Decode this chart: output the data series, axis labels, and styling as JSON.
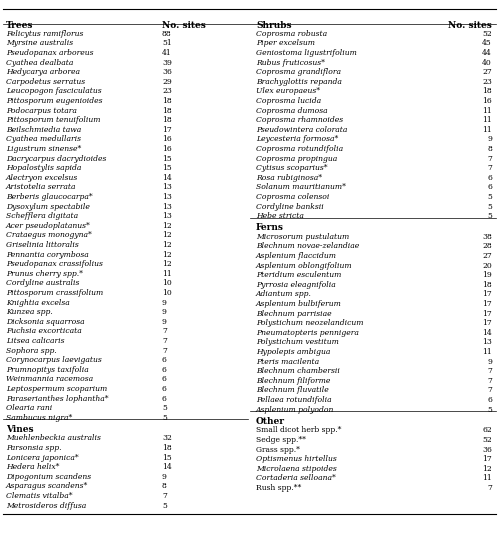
{
  "trees": [
    [
      "Felicytus ramiflorus",
      88
    ],
    [
      "Myrsine australis",
      51
    ],
    [
      "Pseudopanax arboreus",
      41
    ],
    [
      "Cyathea dealbata",
      39
    ],
    [
      "Hedycarya arborea",
      36
    ],
    [
      "Carpodetus serratus",
      29
    ],
    [
      "Leucopogon fasciculatus",
      23
    ],
    [
      "Pittosporum eugenioides",
      18
    ],
    [
      "Podocarpus totara",
      18
    ],
    [
      "Pittosporum tenuifolium",
      18
    ],
    [
      "Beilschmiedia tawa",
      17
    ],
    [
      "Cyathea medullaris",
      16
    ],
    [
      "Ligustrum sinense*",
      16
    ],
    [
      "Dacrycarpus dacrydioides",
      15
    ],
    [
      "Hopalostylis sapida",
      15
    ],
    [
      "Alectryon excelsus",
      14
    ],
    [
      "Aristotelia serrata",
      13
    ],
    [
      "Berberis glaucocarpa*",
      13
    ],
    [
      "Dysoxylum spectabile",
      13
    ],
    [
      "Schefflera digitata",
      13
    ],
    [
      "Acer pseudoplatanus*",
      12
    ],
    [
      "Crataegus monogyna*",
      12
    ],
    [
      "Griselinia littoralis",
      12
    ],
    [
      "Pennantia corymbosa",
      12
    ],
    [
      "Pseudopanax crassifolius",
      12
    ],
    [
      "Prunus cherry spp.*",
      11
    ],
    [
      "Cordyline australis",
      10
    ],
    [
      "Pittosporum crassifolium",
      10
    ],
    [
      "Knightia excelsa",
      9
    ],
    [
      "Kunzea spp.",
      9
    ],
    [
      "Dicksonia squarrosa",
      9
    ],
    [
      "Fuchsia excorticata",
      7
    ],
    [
      "Litsea calicaris",
      7
    ],
    [
      "Sophora spp.",
      7
    ],
    [
      "Corynocarpus laevigatus",
      6
    ],
    [
      "Prumnopitys taxifolia",
      6
    ],
    [
      "Weinmannia racemosa",
      6
    ],
    [
      "Leptospermum scoparium",
      6
    ],
    [
      "Paraserianthes lophantha*",
      6
    ],
    [
      "Olearia rani",
      5
    ],
    [
      "Sambucus nigra*",
      5
    ]
  ],
  "vines": [
    [
      "Muehlenbeckia australis",
      32
    ],
    [
      "Parsonsia spp.",
      18
    ],
    [
      "Lonicera japonica*",
      15
    ],
    [
      "Hedera helix*",
      14
    ],
    [
      "Dipogonium scandens",
      9
    ],
    [
      "Asparagus scandens*",
      8
    ],
    [
      "Clematis vitalba*",
      7
    ],
    [
      "Metrosideros diffusa",
      5
    ]
  ],
  "shrubs": [
    [
      "Coprosma robusta",
      52
    ],
    [
      "Piper excelsum",
      45
    ],
    [
      "Geniostoma ligustrifolium",
      44
    ],
    [
      "Rubus fruticosus*",
      40
    ],
    [
      "Coprosma grandiflora",
      27
    ],
    [
      "Brachyglottis repanda",
      23
    ],
    [
      "Ulex europaeus*",
      18
    ],
    [
      "Coprosma lucida",
      16
    ],
    [
      "Coprosma dumosa",
      11
    ],
    [
      "Coprosma rhamnoides",
      11
    ],
    [
      "Pseudowintera colorata",
      11
    ],
    [
      "Leycesteria formosa*",
      9
    ],
    [
      "Coprosma rotundifolia",
      8
    ],
    [
      "Coprosma propingua",
      7
    ],
    [
      "Cytisus scoparius*",
      7
    ],
    [
      "Rosa rubiginosa*",
      6
    ],
    [
      "Solanum mauritianum*",
      6
    ],
    [
      "Coprosma colensoi",
      5
    ],
    [
      "Cordyline banksii",
      5
    ],
    [
      "Hebe stricta",
      5
    ]
  ],
  "ferns": [
    [
      "Microsorum pustulatum",
      38
    ],
    [
      "Blechnum novae-zelandiae",
      28
    ],
    [
      "Asplenium flaccidum",
      27
    ],
    [
      "Asplenium oblongifolium",
      20
    ],
    [
      "Pteridium esculentum",
      19
    ],
    [
      "Pyrrosia eleagnifolia",
      18
    ],
    [
      "Adiantum spp.",
      17
    ],
    [
      "Asplenium bulbiferum",
      17
    ],
    [
      "Blechnum parrisiae",
      17
    ],
    [
      "Polystichum neozelandicum",
      17
    ],
    [
      "Pneumatopteris pennigera",
      14
    ],
    [
      "Polystichum vestitum",
      13
    ],
    [
      "Hypolepis ambigua",
      11
    ],
    [
      "Pteris macilenta",
      9
    ],
    [
      "Blechnum chambersii",
      7
    ],
    [
      "Blechnum filiforme",
      7
    ],
    [
      "Blechnum fluvatile",
      7
    ],
    [
      "Pellaea rotundifolia",
      6
    ],
    [
      "Asplenium polyodon",
      5
    ]
  ],
  "other": [
    [
      "Small dicot herb spp.*",
      62,
      false
    ],
    [
      "Sedge spp.**",
      52,
      false
    ],
    [
      "Grass spp.*",
      36,
      false
    ],
    [
      "Optismenus hirtellus",
      17,
      true
    ],
    [
      "Microlaena stipoides",
      12,
      true
    ],
    [
      "Cortaderia selloana*",
      11,
      true
    ],
    [
      "Rush spp.**",
      7,
      false
    ]
  ],
  "bg_color": "#ffffff",
  "text_color": "#000000",
  "line_color": "#000000",
  "font_size": 5.5,
  "header_font_size": 6.5
}
